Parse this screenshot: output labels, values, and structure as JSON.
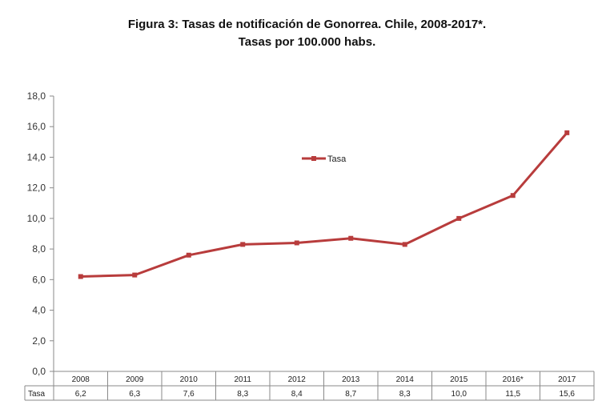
{
  "title_line1": "Figura 3: Tasas de notificación de Gonorrea. Chile, 2008-2017*.",
  "title_line2": "Tasas por 100.000 habs.",
  "chart_data": {
    "type": "line",
    "categories": [
      "2008",
      "2009",
      "2010",
      "2011",
      "2012",
      "2013",
      "2014",
      "2015",
      "2016*",
      "2017"
    ],
    "series": [
      {
        "name": "Tasa",
        "values": [
          6.2,
          6.3,
          7.6,
          8.3,
          8.4,
          8.7,
          8.3,
          10.0,
          11.5,
          15.6
        ]
      }
    ],
    "value_labels": [
      "6,2",
      "6,3",
      "7,6",
      "8,3",
      "8,4",
      "8,7",
      "8,3",
      "10,0",
      "11,5",
      "15,6"
    ],
    "y_ticks": [
      0,
      2,
      4,
      6,
      8,
      10,
      12,
      14,
      16,
      18
    ],
    "y_tick_labels": [
      "0,0",
      "2,0",
      "4,0",
      "6,0",
      "8,0",
      "10,0",
      "12,0",
      "14,0",
      "16,0",
      "18,0"
    ],
    "ylim": [
      0,
      18
    ],
    "table_row_label": "Tasa",
    "legend_label": "Tasa",
    "legend_position": "center-top",
    "grid": false,
    "line_color": "#b83c3c"
  }
}
